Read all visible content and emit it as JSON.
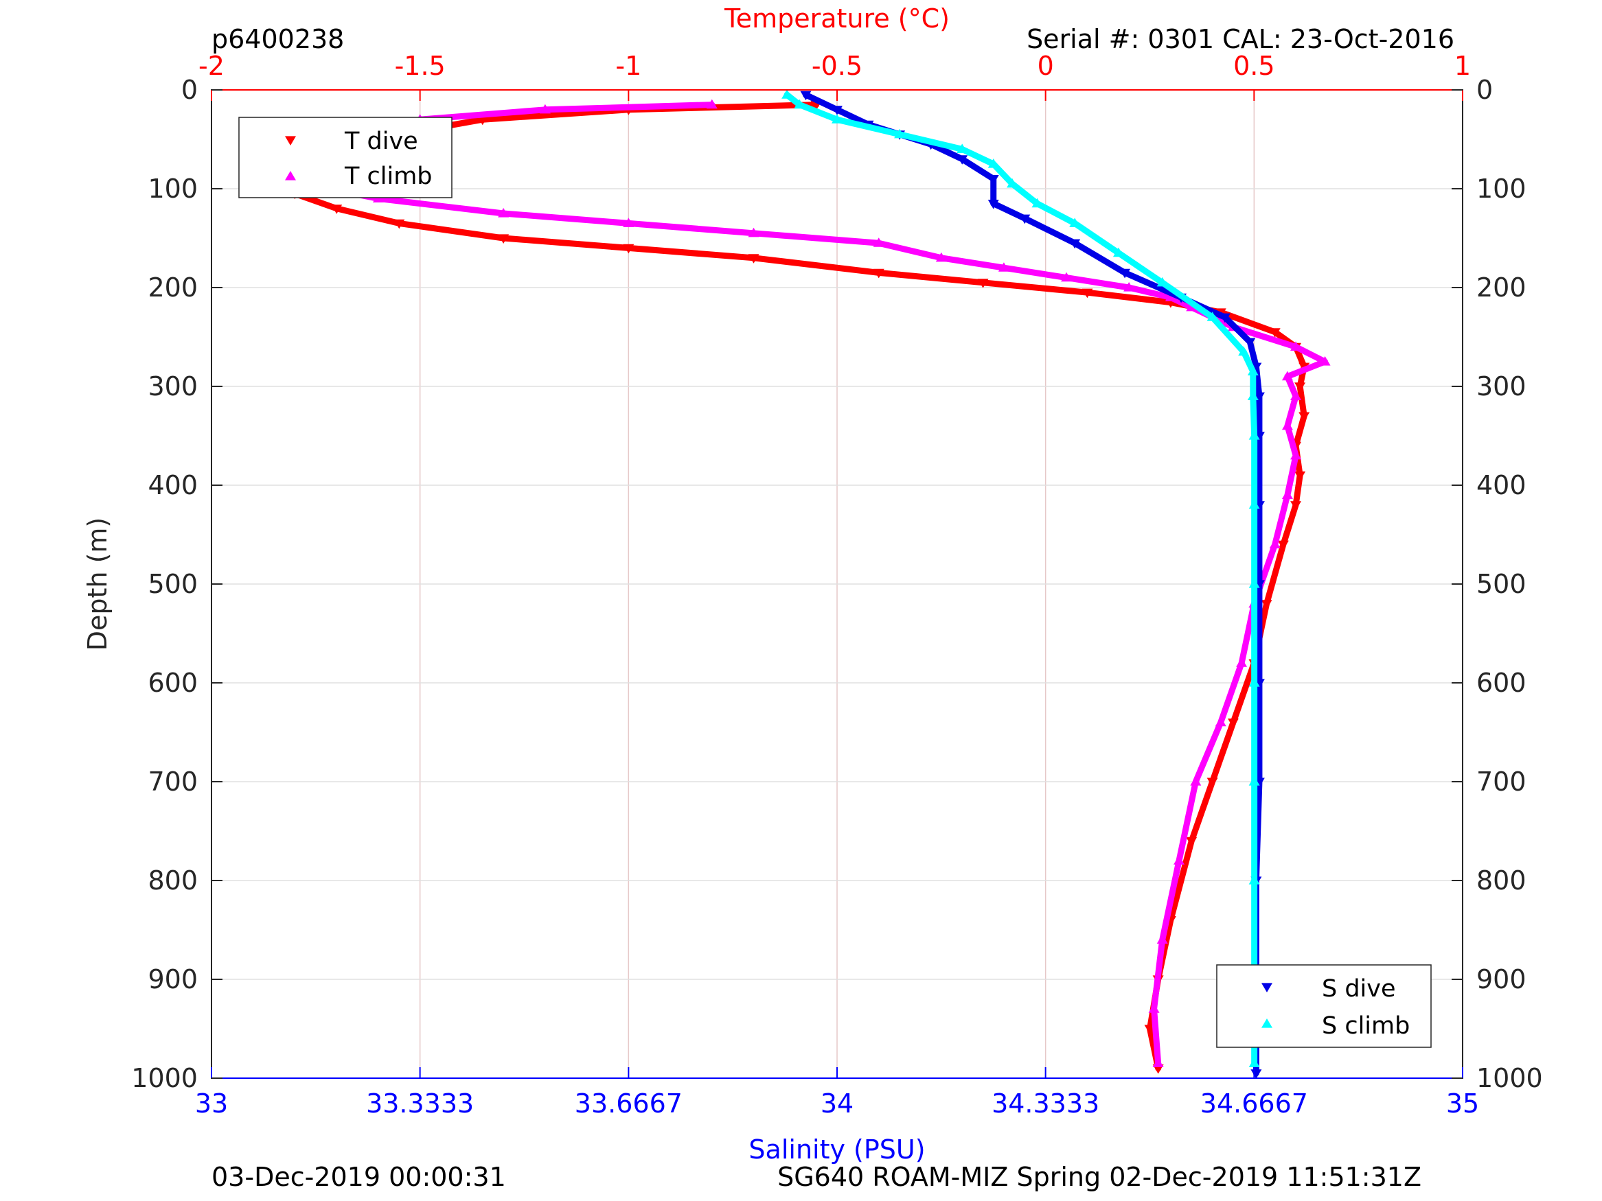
{
  "header": {
    "profile_id": "p6400238",
    "serial": "Serial #: 0301  CAL: 23-Oct-2016"
  },
  "footer": {
    "left": "03-Dec-2019 00:00:31",
    "right": "SG640 ROAM-MIZ Spring 02-Dec-2019 11:51:31Z"
  },
  "colors": {
    "t_dive": "#ff0000",
    "t_climb": "#ff00ff",
    "s_dive": "#0000e6",
    "s_climb": "#00ffff",
    "top_axis": "#ff0000",
    "bottom_axis": "#0000ff",
    "grid": "#e6c8c8"
  },
  "chart_data": {
    "type": "scatter",
    "top_axis": {
      "label": "Temperature (°C)",
      "range": [
        -2,
        1
      ],
      "ticks": [
        -2,
        -1.5,
        -1,
        -0.5,
        0,
        0.5,
        1
      ],
      "tick_labels": [
        "-2",
        "-1.5",
        "-1",
        "-0.5",
        "0",
        "0.5",
        "1"
      ]
    },
    "bottom_axis": {
      "label": "Salinity (PSU)",
      "range": [
        33,
        35
      ],
      "ticks": [
        33,
        33.3333,
        33.6667,
        34,
        34.3333,
        34.6667,
        35
      ],
      "tick_labels": [
        "33",
        "33.3333",
        "33.6667",
        "34",
        "34.3333",
        "34.6667",
        "35"
      ]
    },
    "y_axis": {
      "label": "Depth (m)",
      "range": [
        0,
        1000
      ],
      "reversed": true,
      "ticks": [
        0,
        100,
        200,
        300,
        400,
        500,
        600,
        700,
        800,
        900,
        1000
      ],
      "tick_labels": [
        "0",
        "100",
        "200",
        "300",
        "400",
        "500",
        "600",
        "700",
        "800",
        "900",
        "1000"
      ]
    },
    "grid": true,
    "legends": [
      {
        "placement": "top-left",
        "entries": [
          "T dive",
          "T climb"
        ]
      },
      {
        "placement": "bottom-right",
        "entries": [
          "S dive",
          "S climb"
        ]
      }
    ],
    "series": [
      {
        "name": "T dive",
        "axis": "temperature",
        "marker": "triangle-down",
        "x": [
          -0.55,
          -1.0,
          -1.35,
          -1.55,
          -1.7,
          -1.8,
          -1.82,
          -1.8,
          -1.7,
          -1.55,
          -1.3,
          -1.0,
          -0.7,
          -0.4,
          -0.15,
          0.1,
          0.3,
          0.42,
          0.55,
          0.6,
          0.62,
          0.61,
          0.62,
          0.6,
          0.61,
          0.6,
          0.57,
          0.53,
          0.5,
          0.45,
          0.4,
          0.35,
          0.3,
          0.27,
          0.25,
          0.27
        ],
        "y": [
          15,
          20,
          30,
          45,
          60,
          75,
          90,
          105,
          120,
          135,
          150,
          160,
          170,
          185,
          195,
          205,
          215,
          225,
          245,
          260,
          280,
          300,
          330,
          360,
          390,
          420,
          460,
          520,
          580,
          640,
          700,
          760,
          840,
          900,
          950,
          990
        ]
      },
      {
        "name": "T climb",
        "axis": "temperature",
        "marker": "triangle-up",
        "x": [
          -0.8,
          -1.2,
          -1.5,
          -1.65,
          -1.75,
          -1.8,
          -1.78,
          -1.72,
          -1.6,
          -1.3,
          -1.0,
          -0.7,
          -0.4,
          -0.25,
          -0.1,
          0.05,
          0.2,
          0.3,
          0.35,
          0.45,
          0.6,
          0.67,
          0.58,
          0.6,
          0.58,
          0.6,
          0.58,
          0.55,
          0.5,
          0.47,
          0.42,
          0.36,
          0.32,
          0.28,
          0.26,
          0.27
        ],
        "y": [
          15,
          20,
          30,
          45,
          60,
          75,
          90,
          100,
          110,
          125,
          135,
          145,
          155,
          170,
          180,
          190,
          200,
          210,
          220,
          240,
          260,
          275,
          290,
          310,
          340,
          370,
          410,
          460,
          520,
          580,
          640,
          700,
          780,
          860,
          930,
          985
        ]
      },
      {
        "name": "S dive",
        "axis": "salinity",
        "marker": "triangle-down",
        "x": [
          33.95,
          34.0,
          34.05,
          34.1,
          34.15,
          34.2,
          34.25,
          34.25,
          34.3,
          34.38,
          34.46,
          34.55,
          34.62,
          34.66,
          34.67,
          34.675,
          34.675,
          34.675,
          34.675,
          34.675,
          34.675,
          34.67,
          34.67,
          34.67,
          34.67
        ],
        "y": [
          5,
          20,
          35,
          45,
          55,
          70,
          90,
          115,
          130,
          155,
          185,
          210,
          230,
          255,
          280,
          310,
          350,
          420,
          500,
          600,
          700,
          800,
          900,
          950,
          995
        ]
      },
      {
        "name": "S climb",
        "axis": "salinity",
        "marker": "triangle-up",
        "x": [
          33.92,
          33.94,
          34.0,
          34.1,
          34.2,
          34.25,
          34.28,
          34.32,
          34.38,
          34.45,
          34.52,
          34.6,
          34.65,
          34.665,
          34.665,
          34.667,
          34.667,
          34.667,
          34.667,
          34.667,
          34.667,
          34.667,
          34.667
        ],
        "y": [
          5,
          15,
          30,
          45,
          60,
          75,
          95,
          115,
          135,
          165,
          195,
          230,
          265,
          285,
          310,
          350,
          420,
          500,
          600,
          700,
          800,
          900,
          985
        ]
      }
    ]
  }
}
